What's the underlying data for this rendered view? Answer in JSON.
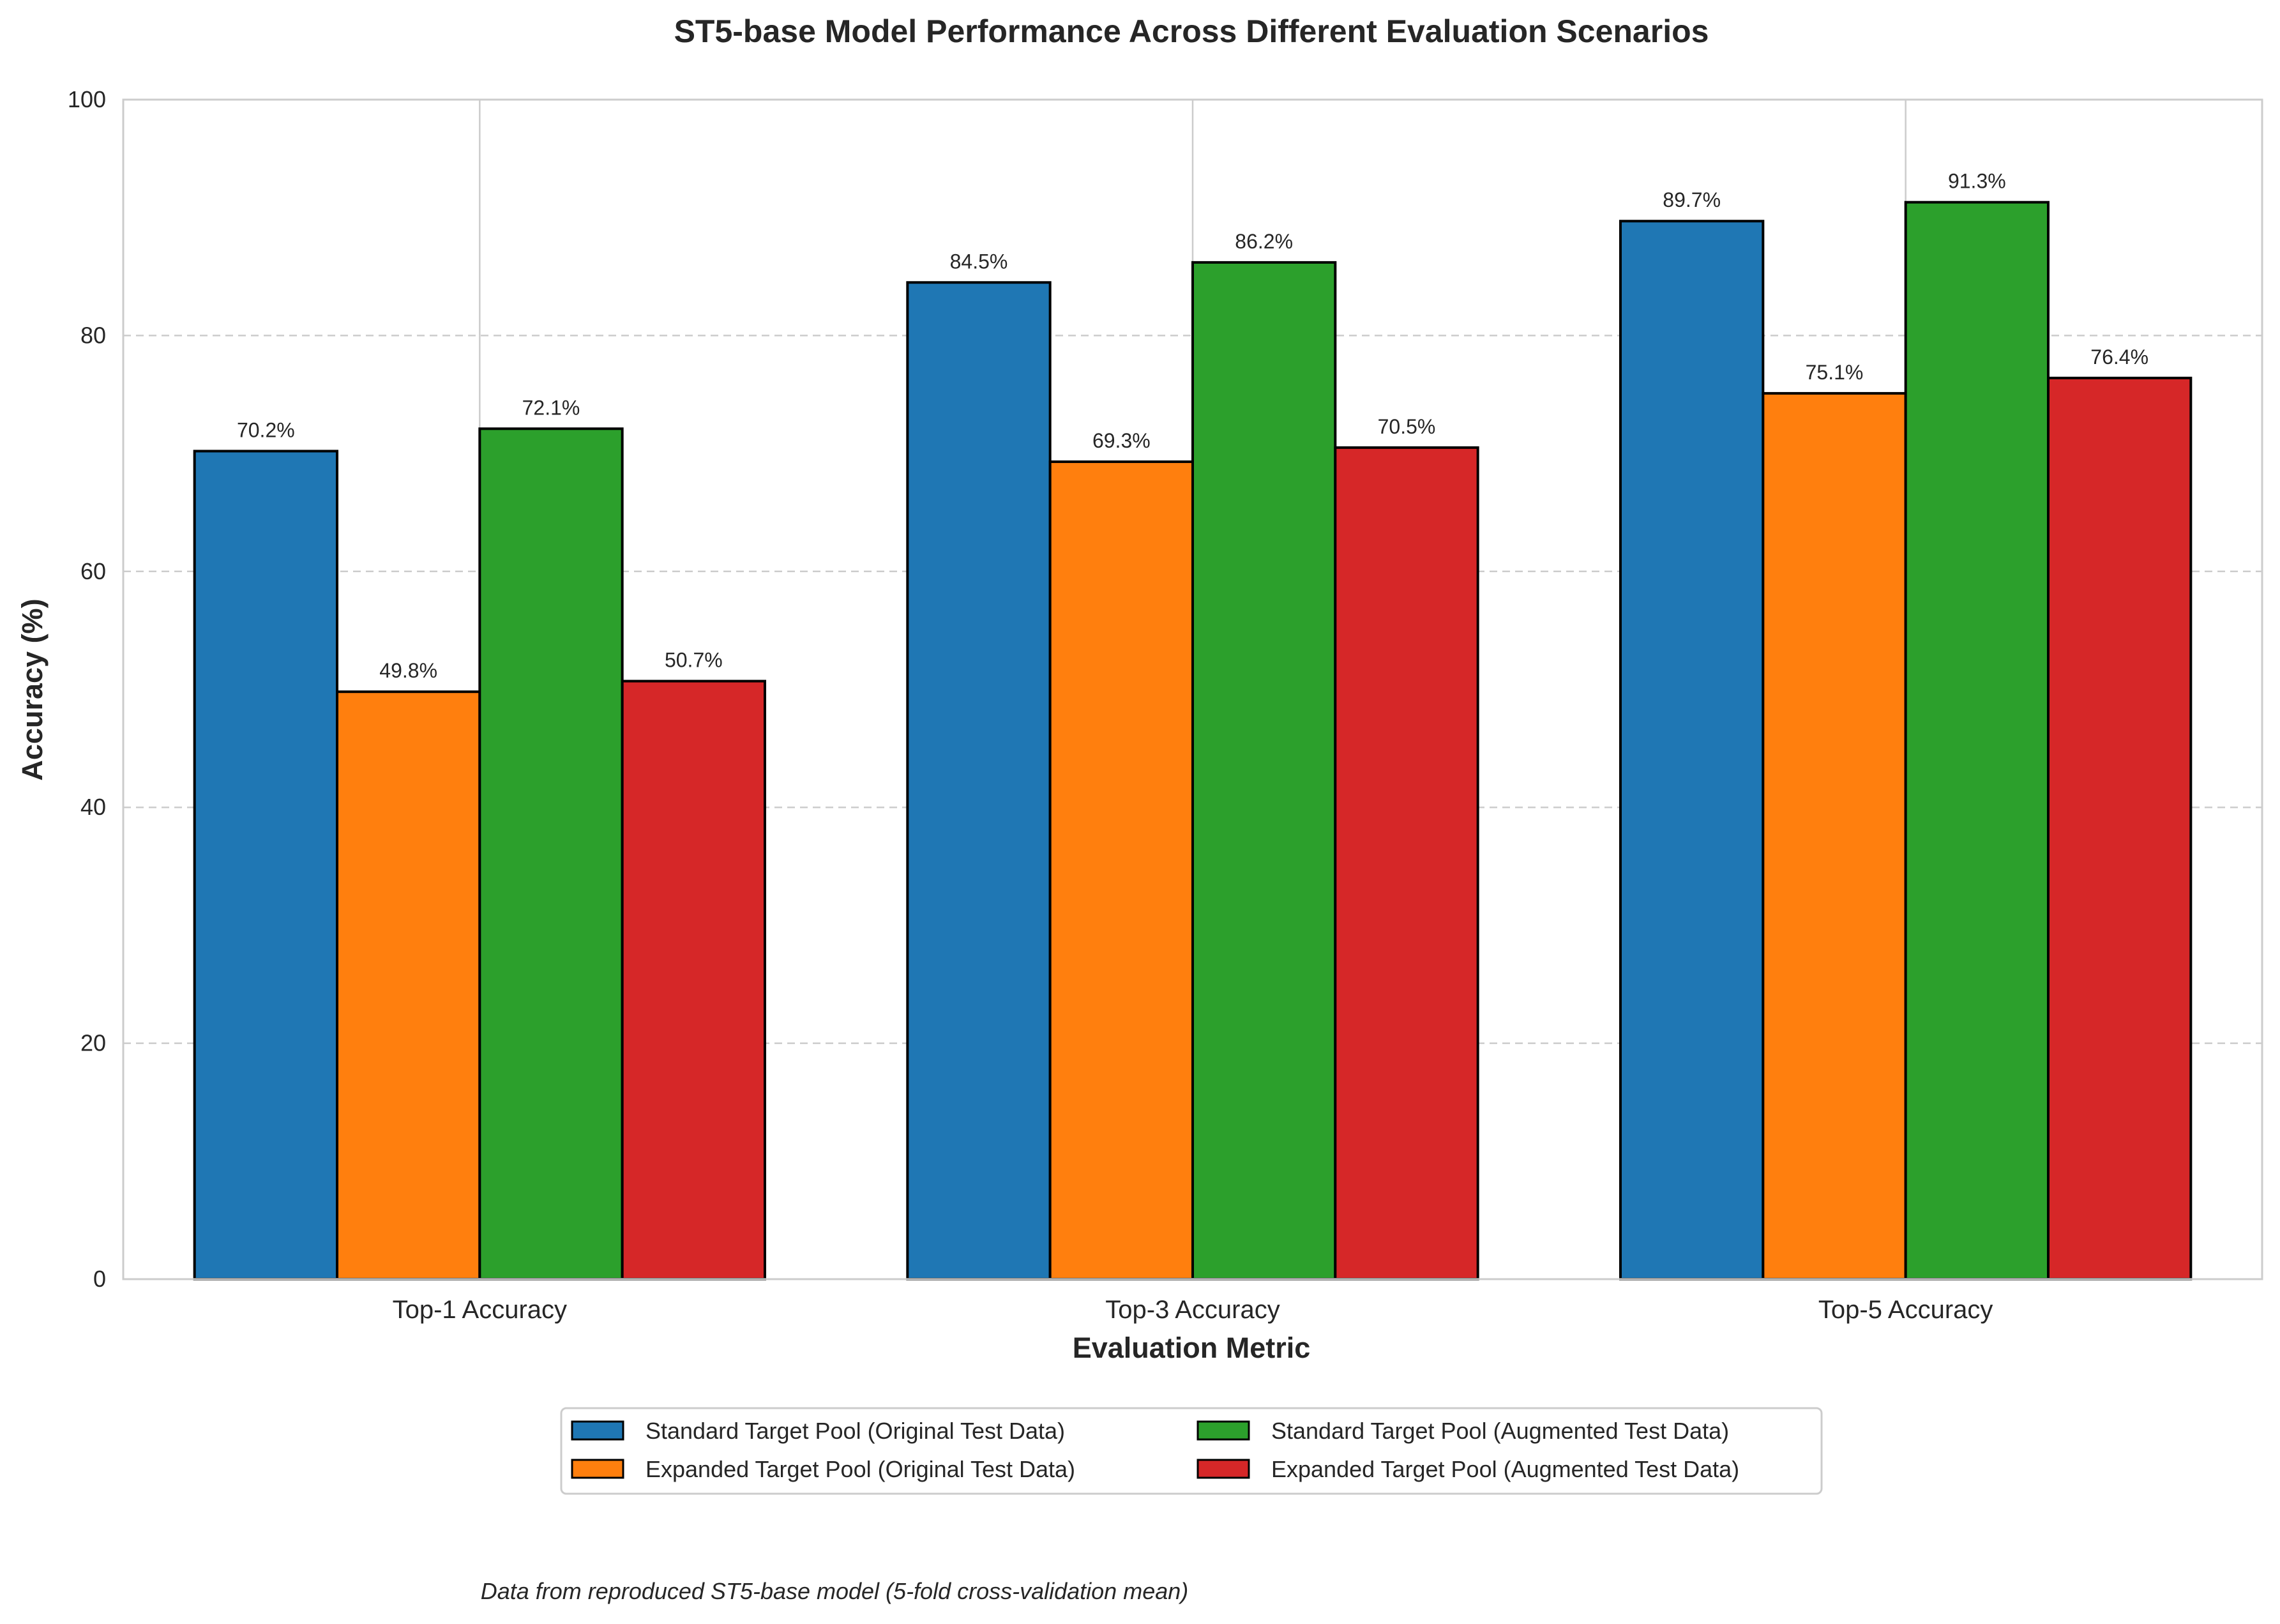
{
  "chart_data": {
    "type": "bar",
    "title": "ST5-base Model Performance Across Different Evaluation Scenarios",
    "xlabel": "Evaluation Metric",
    "ylabel": "Accuracy (%)",
    "ylim": [
      0,
      100
    ],
    "yticks": [
      "0",
      "20",
      "40",
      "60",
      "80",
      "100"
    ],
    "categories": [
      "Top-1 Accuracy",
      "Top-3 Accuracy",
      "Top-5 Accuracy"
    ],
    "series": [
      {
        "name": "Standard Target Pool (Original Test Data)",
        "color": "#1f77b4",
        "values": [
          70.2,
          84.5,
          89.7
        ],
        "labels": [
          "70.2%",
          "84.5%",
          "89.7%"
        ]
      },
      {
        "name": "Expanded Target Pool (Original Test Data)",
        "color": "#ff7f0e",
        "values": [
          49.8,
          69.3,
          75.1
        ],
        "labels": [
          "49.8%",
          "69.3%",
          "75.1%"
        ]
      },
      {
        "name": "Standard Target Pool (Augmented Test Data)",
        "color": "#2ca02c",
        "values": [
          72.1,
          86.2,
          91.3
        ],
        "labels": [
          "72.1%",
          "86.2%",
          "91.3%"
        ]
      },
      {
        "name": "Expanded Target Pool (Augmented Test Data)",
        "color": "#d62728",
        "values": [
          50.7,
          70.5,
          76.4
        ],
        "labels": [
          "50.7%",
          "70.5%",
          "76.4%"
        ]
      }
    ],
    "grid": "y dashed, x solid at category centers",
    "legend_placement": "bottom-center, two columns",
    "footnote": "Data from reproduced ST5-base model (5-fold cross-validation mean)"
  }
}
